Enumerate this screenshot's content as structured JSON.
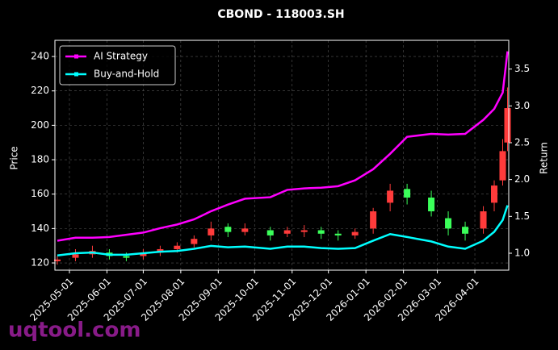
{
  "chart_data": {
    "type": "candlestick",
    "title": "CBOND - 118003.SH",
    "ylabel": "Price",
    "y2label": "Return",
    "watermark": "uqtool.com",
    "x": [
      "2025-04-21",
      "2025-05-06",
      "2025-05-20",
      "2025-06-03",
      "2025-06-17",
      "2025-07-01",
      "2025-07-15",
      "2025-07-29",
      "2025-08-12",
      "2025-08-26",
      "2025-09-09",
      "2025-09-23",
      "2025-10-14",
      "2025-10-28",
      "2025-11-11",
      "2025-11-25",
      "2025-12-09",
      "2025-12-23",
      "2026-01-07",
      "2026-01-21",
      "2026-02-04",
      "2026-02-24",
      "2026-03-10",
      "2026-03-24",
      "2026-04-08",
      "2026-04-17",
      "2026-04-24",
      "2026-04-28"
    ],
    "open": [
      121,
      123,
      125,
      126,
      124,
      124,
      126,
      128,
      131,
      136,
      141,
      138,
      139,
      137,
      138,
      139,
      137,
      136,
      140,
      155,
      163,
      158,
      146,
      141,
      140,
      155,
      168,
      190
    ],
    "high": [
      124,
      128,
      130,
      128,
      126,
      128,
      130,
      132,
      136,
      144,
      143,
      143,
      141,
      141,
      142,
      141,
      139,
      140,
      152,
      166,
      166,
      162,
      150,
      144,
      153,
      168,
      192,
      222
    ],
    "low": [
      119,
      121,
      123,
      122,
      121,
      122,
      124,
      126,
      129,
      133,
      135,
      136,
      133,
      135,
      135,
      134,
      133,
      134,
      137,
      150,
      154,
      147,
      136,
      133,
      137,
      150,
      165,
      185
    ],
    "close": [
      122,
      125,
      127,
      124,
      123,
      126,
      128,
      130,
      134,
      140,
      138,
      140,
      136,
      139,
      139,
      137,
      136,
      138,
      150,
      162,
      158,
      150,
      140,
      137,
      150,
      165,
      185,
      210
    ],
    "up_color": "#ff3b3b",
    "down_color": "#3bff5a",
    "series": [
      {
        "name": "AI Strategy",
        "color": "#ff00ff",
        "axis": "y2",
        "values": [
          1.17,
          1.21,
          1.21,
          1.22,
          1.25,
          1.28,
          1.34,
          1.39,
          1.46,
          1.57,
          1.66,
          1.74,
          1.76,
          1.86,
          1.88,
          1.89,
          1.91,
          1.99,
          2.14,
          2.35,
          2.58,
          2.62,
          2.61,
          2.62,
          2.81,
          2.96,
          3.18,
          3.74
        ]
      },
      {
        "name": "Buy-and-Hold",
        "color": "#00ffff",
        "axis": "y2",
        "values": [
          0.97,
          1.0,
          1.01,
          0.98,
          0.98,
          1.0,
          1.02,
          1.03,
          1.06,
          1.1,
          1.08,
          1.09,
          1.06,
          1.09,
          1.09,
          1.07,
          1.06,
          1.07,
          1.17,
          1.26,
          1.22,
          1.16,
          1.09,
          1.06,
          1.17,
          1.29,
          1.45,
          1.65
        ]
      }
    ],
    "xlim": [
      "2025-04-19",
      "2026-04-29"
    ],
    "xticks": [
      "2025-05-01",
      "2025-06-01",
      "2025-07-01",
      "2025-08-01",
      "2025-09-01",
      "2025-10-01",
      "2025-11-01",
      "2025-12-01",
      "2026-01-01",
      "2026-02-01",
      "2026-03-01",
      "2026-04-01"
    ],
    "ylim": [
      115.8,
      249.4
    ],
    "yticks": [
      120,
      140,
      160,
      180,
      200,
      220,
      240
    ],
    "y2lim": [
      0.77,
      3.89
    ],
    "y2ticks": [
      {
        "value": 1.0,
        "label": "1.0"
      },
      {
        "value": 1.5,
        "label": "1.5"
      },
      {
        "value": 2.0,
        "label": "2.0"
      },
      {
        "value": 2.5,
        "label": "2.5"
      },
      {
        "value": 3.0,
        "label": "3.0"
      },
      {
        "value": 3.5,
        "label": "3.5"
      }
    ],
    "grid": true,
    "legend": "upper left"
  }
}
